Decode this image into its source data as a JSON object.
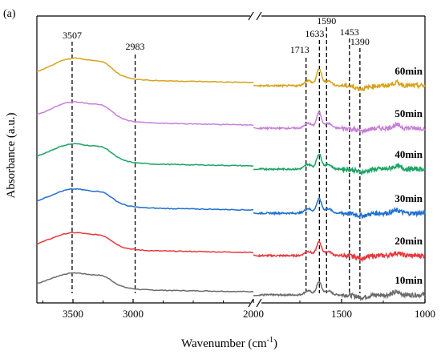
{
  "chart_data": {
    "type": "line",
    "panel_label": "(a)",
    "xlabel": "Wavenumber (cm",
    "xlabel_sup": "-1",
    "xlabel_close": ")",
    "ylabel": "Absorbance (a.u.)",
    "x_axis": {
      "reversed": true,
      "broken": true,
      "segments": [
        {
          "xlim": [
            3800,
            2000
          ]
        },
        {
          "xlim": [
            2000,
            1000
          ]
        }
      ],
      "tick_labels": [
        "3500",
        "3000",
        "2000",
        "1500",
        "1000"
      ],
      "tick_values": [
        3500,
        3000,
        2000,
        1500,
        1000
      ]
    },
    "grid": false,
    "peak_markers": [
      {
        "x": 3507,
        "label": "3507"
      },
      {
        "x": 2983,
        "label": "2983"
      },
      {
        "x": 1713,
        "label": "1713"
      },
      {
        "x": 1633,
        "label": "1633"
      },
      {
        "x": 1590,
        "label": "1590"
      },
      {
        "x": 1453,
        "label": "1453"
      },
      {
        "x": 1390,
        "label": "1390"
      }
    ],
    "series": [
      {
        "name": "10min",
        "color": "#6b6b6b"
      },
      {
        "name": "20min",
        "color": "#e8383d"
      },
      {
        "name": "30min",
        "color": "#1f6fd1"
      },
      {
        "name": "40min",
        "color": "#1aa463"
      },
      {
        "name": "50min",
        "color": "#c77fd9"
      },
      {
        "name": "60min",
        "color": "#d9a21b"
      }
    ]
  }
}
